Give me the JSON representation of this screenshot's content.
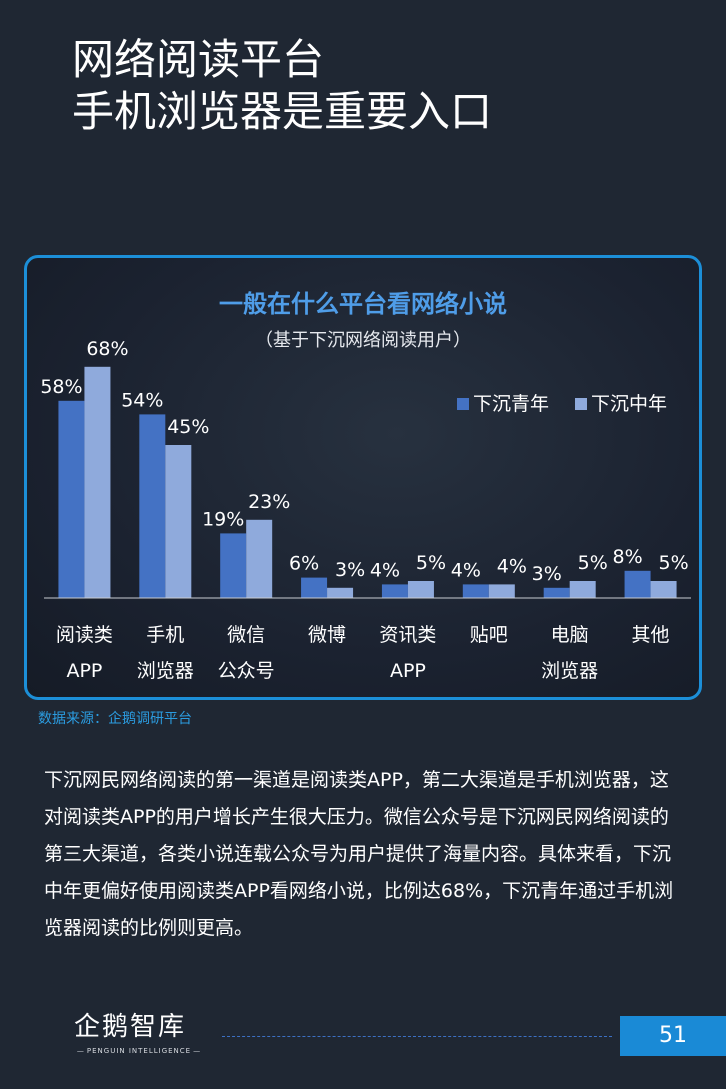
{
  "page": {
    "title_line1": "网络阅读平台",
    "title_line2": "手机浏览器是重要入口",
    "source": "数据来源：企鹅调研平台",
    "paragraph": "下沉网民网络阅读的第一渠道是阅读类APP，第二大渠道是手机浏览器，这对阅读类APP的用户增长产生很大压力。微信公众号是下沉网民网络阅读的第三大渠道，各类小说连载公众号为用户提供了海量内容。具体来看，下沉中年更偏好使用阅读类APP看网络小说，比例达68%，下沉青年通过手机浏览器阅读的比例则更高。",
    "logo_text": "企鹅智库",
    "logo_sub": "PENGUIN INTELLIGENCE",
    "page_number": "51"
  },
  "colors": {
    "background": "#1f2733",
    "accent_blue": "#1c8fd8",
    "series_young": "#4472c4",
    "series_middle": "#8faadc",
    "chart_title": "#4f9de8",
    "source_text": "#2b9ce0"
  },
  "chart_data": {
    "type": "bar",
    "title": "一般在什么平台看网络小说",
    "subtitle": "（基于下沉网络阅读用户）",
    "categories": [
      [
        "阅读类",
        "APP"
      ],
      [
        "手机",
        "浏览器"
      ],
      [
        "微信",
        "公众号"
      ],
      [
        "微博"
      ],
      [
        "资讯类",
        "APP"
      ],
      [
        "贴吧"
      ],
      [
        "电脑",
        "浏览器"
      ],
      [
        "其他"
      ]
    ],
    "series": [
      {
        "name": "下沉青年",
        "values": [
          58,
          54,
          19,
          6,
          4,
          4,
          3,
          8
        ],
        "color": "#4472c4"
      },
      {
        "name": "下沉中年",
        "values": [
          68,
          45,
          23,
          3,
          5,
          4,
          5,
          5
        ],
        "color": "#8faadc"
      }
    ],
    "value_suffix": "%",
    "ylim": [
      0,
      75
    ],
    "grid": false,
    "legend_position": "top-right"
  }
}
